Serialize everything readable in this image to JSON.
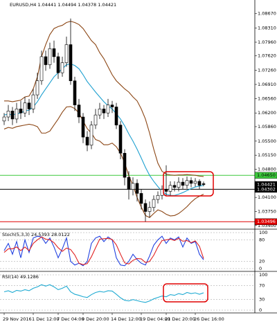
{
  "chart_data": [
    {
      "type": "candlestick",
      "title": "EURUSD,H4 1.04441 1.04494 1.04378 1.04421",
      "categories": [
        "29 Nov 2016",
        null,
        null,
        null,
        null,
        null,
        null,
        "1 Dec 12:00",
        null,
        null,
        null,
        null,
        null,
        "7 Dec 04:00",
        null,
        null,
        null,
        null,
        null,
        "9 Dec 20:00",
        null,
        null,
        null,
        null,
        null,
        null,
        "14 Dec 12:00",
        null,
        null,
        null,
        null,
        null,
        null,
        "19 Dec 04:00",
        null,
        null,
        null,
        null,
        null,
        "21 Dec 20:00",
        null,
        null,
        null,
        null,
        null,
        null,
        "26 Dec 16:00",
        null,
        null
      ],
      "open": [
        1.06,
        1.061,
        1.0625,
        1.0605,
        1.063,
        1.062,
        1.0645,
        1.063,
        1.0665,
        1.07,
        1.076,
        1.074,
        1.078,
        1.076,
        1.072,
        1.0745,
        1.079,
        1.07,
        1.064,
        1.061,
        1.056,
        1.054,
        1.059,
        1.0615,
        1.063,
        1.062,
        1.064,
        1.0635,
        1.059,
        1.052,
        1.046,
        1.043,
        1.0445,
        1.042,
        1.0395,
        1.0375,
        1.0385,
        1.0405,
        1.0415,
        1.043,
        1.0425,
        1.044,
        1.0435,
        1.0448,
        1.044,
        1.0452,
        1.0445,
        1.045,
        1.04441
      ],
      "high": [
        1.062,
        1.064,
        1.0635,
        1.0645,
        1.065,
        1.066,
        1.0655,
        1.068,
        1.072,
        1.0775,
        1.0775,
        1.0795,
        1.08,
        1.077,
        1.076,
        1.081,
        1.0855,
        1.071,
        1.0655,
        1.062,
        1.0575,
        1.06,
        1.063,
        1.0645,
        1.064,
        1.0655,
        1.065,
        1.0645,
        1.06,
        1.053,
        1.0475,
        1.046,
        1.0455,
        1.043,
        1.0405,
        1.04,
        1.0415,
        1.0425,
        1.044,
        1.049,
        1.045,
        1.045,
        1.046,
        1.0458,
        1.0462,
        1.046,
        1.0458,
        1.0455,
        1.04494
      ],
      "low": [
        1.059,
        1.06,
        1.059,
        1.0595,
        1.0605,
        1.061,
        1.0615,
        1.062,
        1.0655,
        1.069,
        1.0725,
        1.073,
        1.0745,
        1.0705,
        1.071,
        1.0735,
        1.069,
        1.0625,
        1.0595,
        1.0545,
        1.0525,
        1.053,
        1.058,
        1.0605,
        1.0605,
        1.061,
        1.062,
        1.058,
        1.0505,
        1.044,
        1.0405,
        1.0415,
        1.04,
        1.038,
        1.03496,
        1.036,
        1.0375,
        1.0395,
        1.0405,
        1.0415,
        1.0415,
        1.0425,
        1.0425,
        1.043,
        1.0432,
        1.0435,
        1.0437,
        1.043,
        1.04378
      ],
      "close": [
        1.061,
        1.0625,
        1.0605,
        1.063,
        1.062,
        1.0645,
        1.063,
        1.0665,
        1.07,
        1.076,
        1.074,
        1.078,
        1.076,
        1.072,
        1.0745,
        1.079,
        1.07,
        1.064,
        1.061,
        1.056,
        1.054,
        1.059,
        1.0615,
        1.063,
        1.062,
        1.064,
        1.0635,
        1.059,
        1.052,
        1.046,
        1.043,
        1.0445,
        1.042,
        1.0395,
        1.0375,
        1.0385,
        1.0405,
        1.0415,
        1.043,
        1.0425,
        1.044,
        1.0435,
        1.0448,
        1.044,
        1.0452,
        1.0445,
        1.045,
        1.044,
        1.04421
      ],
      "series": [
        {
          "color": "#8b4513",
          "values": [
            1.065,
            1.065,
            1.0648,
            1.065,
            1.0652,
            1.066,
            1.0662,
            1.068,
            1.071,
            1.076,
            1.079,
            1.0815,
            1.083,
            1.0835,
            1.0838,
            1.0845,
            1.0848,
            1.0845,
            1.084,
            1.083,
            1.0815,
            1.08,
            1.079,
            1.077,
            1.0755,
            1.0735,
            1.0715,
            1.07,
            1.069,
            1.068,
            1.0672,
            1.066,
            1.065,
            1.063,
            1.0605,
            1.057,
            1.053,
            1.0495,
            1.0475,
            1.0468,
            1.0466,
            1.0465,
            1.0466,
            1.0466,
            1.0467,
            1.0466,
            1.0465,
            1.0463,
            1.0462
          ]
        },
        {
          "color": "#1ea0d0",
          "values": [
            1.0615,
            1.0617,
            1.0615,
            1.0618,
            1.062,
            1.0625,
            1.0627,
            1.0635,
            1.0648,
            1.0665,
            1.068,
            1.0695,
            1.071,
            1.072,
            1.073,
            1.074,
            1.0742,
            1.0738,
            1.073,
            1.0715,
            1.0698,
            1.0685,
            1.0672,
            1.066,
            1.0648,
            1.0638,
            1.063,
            1.0618,
            1.0605,
            1.0588,
            1.0568,
            1.055,
            1.053,
            1.0508,
            1.0485,
            1.0465,
            1.045,
            1.0437,
            1.0425,
            1.0418,
            1.0415,
            1.0415,
            1.0418,
            1.0422,
            1.0427,
            1.0432,
            1.0436,
            1.0438,
            1.044
          ]
        },
        {
          "color": "#8b4513",
          "values": [
            1.058,
            1.0584,
            1.0582,
            1.0586,
            1.0588,
            1.059,
            1.0592,
            1.059,
            1.0586,
            1.057,
            1.057,
            1.0575,
            1.059,
            1.0605,
            1.0622,
            1.0635,
            1.0636,
            1.0631,
            1.062,
            1.06,
            1.0581,
            1.057,
            1.0554,
            1.055,
            1.0541,
            1.0541,
            1.0545,
            1.0536,
            1.052,
            1.0496,
            1.0464,
            1.044,
            1.041,
            1.0386,
            1.0365,
            1.036,
            1.037,
            1.0379,
            1.0375,
            1.0368,
            1.0364,
            1.0365,
            1.037,
            1.0378,
            1.0387,
            1.0398,
            1.0407,
            1.0413,
            1.0418
          ]
        }
      ],
      "ylim": [
        1.03328,
        1.0901
      ],
      "yticks": [
        {
          "value": 1.0867,
          "label": "1.08670"
        },
        {
          "value": 1.0831,
          "label": "1.08310"
        },
        {
          "value": 1.0796,
          "label": "1.07960"
        },
        {
          "value": 1.0762,
          "label": "1.07620"
        },
        {
          "value": 1.0726,
          "label": "1.07260"
        },
        {
          "value": 1.0691,
          "label": "1.06910"
        },
        {
          "value": 1.0656,
          "label": "1.06560"
        },
        {
          "value": 1.062,
          "label": "1.06200"
        },
        {
          "value": 1.0586,
          "label": "1.05860"
        },
        {
          "value": 1.055,
          "label": "1.05500"
        },
        {
          "value": 1.0515,
          "label": "1.05150"
        },
        {
          "value": 1.048,
          "label": "1.04800"
        },
        {
          "value": 1.041,
          "label": "1.04100"
        },
        {
          "value": 1.0375,
          "label": "1.03750"
        },
        {
          "value": 1.034,
          "label": "1.03400"
        }
      ],
      "levels": [
        {
          "value": 1.0465,
          "label": "1.04650",
          "color": "#3cc83c",
          "line": true
        },
        {
          "value": 1.04421,
          "label": "1.04421",
          "color": "#000000",
          "line": false
        },
        {
          "value": 1.04302,
          "label": "1.04302",
          "color": "#000000",
          "line": true
        },
        {
          "value": 1.03496,
          "label": "1.03496",
          "color": "#e00000",
          "line": true
        }
      ]
    },
    {
      "type": "line",
      "title": "Stoch(5,3,3) 24.5393 28.0122",
      "series": [
        {
          "color": "#2040e0",
          "values": [
            50,
            70,
            40,
            75,
            30,
            80,
            45,
            85,
            90,
            88,
            70,
            85,
            60,
            30,
            55,
            85,
            20,
            10,
            15,
            8,
            20,
            70,
            85,
            90,
            75,
            88,
            80,
            30,
            10,
            8,
            20,
            40,
            25,
            15,
            10,
            35,
            65,
            80,
            90,
            70,
            85,
            80,
            88,
            60,
            85,
            70,
            75,
            40,
            24.5393
          ]
        },
        {
          "color": "#e02020",
          "values": [
            45,
            55,
            55,
            60,
            50,
            60,
            50,
            70,
            80,
            88,
            82,
            80,
            72,
            58,
            48,
            57,
            53,
            38,
            15,
            11,
            14,
            33,
            58,
            82,
            83,
            84,
            81,
            66,
            40,
            16,
            13,
            23,
            28,
            27,
            17,
            20,
            37,
            60,
            78,
            80,
            82,
            78,
            84,
            76,
            78,
            72,
            77,
            62,
            28.0122
          ]
        }
      ],
      "ylim": [
        0,
        100
      ],
      "yticks": [
        0,
        20,
        80,
        100
      ]
    },
    {
      "type": "line",
      "title": "RSI(14) 49.1286",
      "series": [
        {
          "color": "#1eaad2",
          "values": [
            52,
            55,
            50,
            56,
            54,
            58,
            55,
            62,
            66,
            72,
            68,
            72,
            66,
            58,
            62,
            68,
            52,
            45,
            42,
            38,
            36,
            44,
            50,
            53,
            51,
            55,
            54,
            45,
            35,
            28,
            26,
            30,
            27,
            24,
            22,
            26,
            32,
            36,
            40,
            38,
            44,
            42,
            47,
            44,
            50,
            47,
            49,
            45,
            49.1286
          ]
        }
      ],
      "ylim": [
        0,
        100
      ],
      "yticks": [
        0,
        30,
        70,
        100
      ]
    }
  ]
}
